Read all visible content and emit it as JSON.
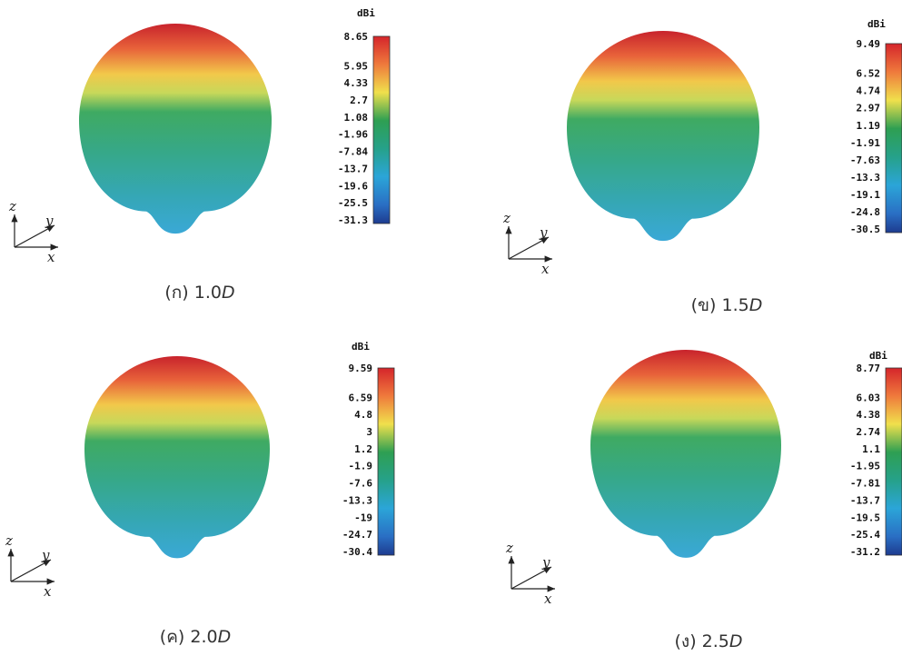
{
  "axes": [
    "z",
    "y",
    "x"
  ],
  "panels": [
    {
      "caption": "(ก) 1.0",
      "caption_var": "D",
      "unit": "dBi",
      "scale": [
        "8.65",
        "5.95",
        "4.33",
        "2.7",
        "1.08",
        "-1.96",
        "-7.84",
        "-13.7",
        "-19.6",
        "-25.5",
        "-31.3"
      ]
    },
    {
      "caption": "(ข) 1.5",
      "caption_var": "D",
      "unit": "dBi",
      "scale": [
        "9.49",
        "6.52",
        "4.74",
        "2.97",
        "1.19",
        "-1.91",
        "-7.63",
        "-13.3",
        "-19.1",
        "-24.8",
        "-30.5"
      ]
    },
    {
      "caption": "(ค) 2.0",
      "caption_var": "D",
      "unit": "dBi",
      "scale": [
        "9.59",
        "6.59",
        "4.8",
        "3",
        "1.2",
        "-1.9",
        "-7.6",
        "-13.3",
        "-19",
        "-24.7",
        "-30.4"
      ]
    },
    {
      "caption": "(ง) 2.5",
      "caption_var": "D",
      "unit": "dBi",
      "scale": [
        "8.77",
        "6.03",
        "4.38",
        "2.74",
        "1.1",
        "-1.95",
        "-7.81",
        "-13.7",
        "-19.5",
        "-25.4",
        "-31.2"
      ]
    }
  ]
}
